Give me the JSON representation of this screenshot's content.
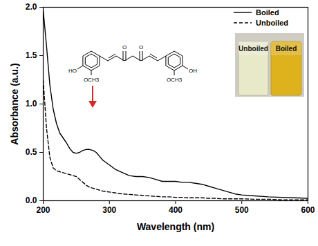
{
  "chart_data": {
    "type": "line",
    "x_label": "Wavelength (nm)",
    "y_label": "Absorbance (a.u.)",
    "x": [
      200,
      205,
      210,
      215,
      220,
      225,
      230,
      235,
      240,
      245,
      250,
      255,
      260,
      265,
      270,
      275,
      280,
      285,
      290,
      300,
      310,
      320,
      330,
      340,
      350,
      360,
      370,
      380,
      390,
      400,
      410,
      420,
      430,
      440,
      450,
      460,
      470,
      480,
      490,
      500,
      520,
      540,
      560,
      580,
      600
    ],
    "series": [
      {
        "name": "Boiled",
        "color": "#000000",
        "line_style": "solid",
        "values": [
          1.97,
          1.6,
          1.2,
          0.95,
          0.8,
          0.7,
          0.65,
          0.6,
          0.54,
          0.5,
          0.49,
          0.5,
          0.52,
          0.53,
          0.53,
          0.52,
          0.5,
          0.46,
          0.42,
          0.37,
          0.32,
          0.29,
          0.26,
          0.25,
          0.25,
          0.24,
          0.22,
          0.2,
          0.2,
          0.2,
          0.19,
          0.19,
          0.18,
          0.17,
          0.15,
          0.13,
          0.11,
          0.09,
          0.07,
          0.06,
          0.05,
          0.04,
          0.035,
          0.03,
          0.025
        ]
      },
      {
        "name": "Unboiled",
        "color": "#000000",
        "line_style": "dashed",
        "values": [
          1.25,
          0.75,
          0.45,
          0.34,
          0.31,
          0.3,
          0.29,
          0.28,
          0.27,
          0.26,
          0.25,
          0.22,
          0.19,
          0.16,
          0.14,
          0.13,
          0.12,
          0.11,
          0.1,
          0.09,
          0.08,
          0.07,
          0.065,
          0.06,
          0.055,
          0.05,
          0.045,
          0.04,
          0.04,
          0.035,
          0.035,
          0.03,
          0.03,
          0.03,
          0.025,
          0.025,
          0.02,
          0.02,
          0.02,
          0.02,
          0.015,
          0.015,
          0.01,
          0.01,
          0.01
        ]
      }
    ],
    "xlim": [
      200,
      600
    ],
    "xticks": [
      200,
      300,
      400,
      500,
      600
    ],
    "ylim": [
      0,
      2
    ],
    "yticks": [
      {
        "value": 0,
        "label": "0.0"
      },
      {
        "value": 0.5,
        "label": "0.5"
      },
      {
        "value": 1,
        "label": "1.0"
      },
      {
        "value": 1.5,
        "label": "1.5"
      },
      {
        "value": 2,
        "label": "2.0"
      }
    ],
    "legend": "top-right",
    "grid": false,
    "annotations": {
      "structure_labels": [
        "HO",
        "OCH3",
        "O",
        "O",
        "OCH3",
        "OH"
      ],
      "photo_labels": [
        "Unboiled",
        "Boiled"
      ]
    }
  }
}
